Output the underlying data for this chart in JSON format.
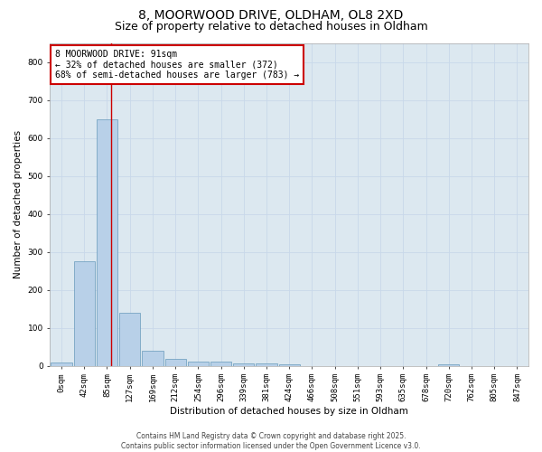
{
  "title_line1": "8, MOORWOOD DRIVE, OLDHAM, OL8 2XD",
  "title_line2": "Size of property relative to detached houses in Oldham",
  "xlabel": "Distribution of detached houses by size in Oldham",
  "ylabel": "Number of detached properties",
  "bin_labels": [
    "0sqm",
    "42sqm",
    "85sqm",
    "127sqm",
    "169sqm",
    "212sqm",
    "254sqm",
    "296sqm",
    "339sqm",
    "381sqm",
    "424sqm",
    "466sqm",
    "508sqm",
    "551sqm",
    "593sqm",
    "635sqm",
    "678sqm",
    "720sqm",
    "762sqm",
    "805sqm",
    "847sqm"
  ],
  "bar_values": [
    8,
    275,
    648,
    140,
    40,
    18,
    12,
    10,
    7,
    5,
    3,
    0,
    0,
    0,
    0,
    0,
    0,
    4,
    0,
    0,
    0
  ],
  "bar_color": "#b8d0e8",
  "bar_edge_color": "#6699bb",
  "bar_edge_width": 0.5,
  "grid_color": "#c8d8ea",
  "background_color": "#dce8f0",
  "vline_x": 2.18,
  "vline_color": "#cc0000",
  "annotation_text": "8 MOORWOOD DRIVE: 91sqm\n← 32% of detached houses are smaller (372)\n68% of semi-detached houses are larger (783) →",
  "annotation_box_color": "#ffffff",
  "annotation_box_edge": "#cc0000",
  "ylim": [
    0,
    850
  ],
  "yticks": [
    0,
    100,
    200,
    300,
    400,
    500,
    600,
    700,
    800
  ],
  "footer_line1": "Contains HM Land Registry data © Crown copyright and database right 2025.",
  "footer_line2": "Contains public sector information licensed under the Open Government Licence v3.0.",
  "title_fontsize": 10,
  "subtitle_fontsize": 9,
  "axis_label_fontsize": 7.5,
  "tick_fontsize": 6.5,
  "annotation_fontsize": 7,
  "footer_fontsize": 5.5
}
